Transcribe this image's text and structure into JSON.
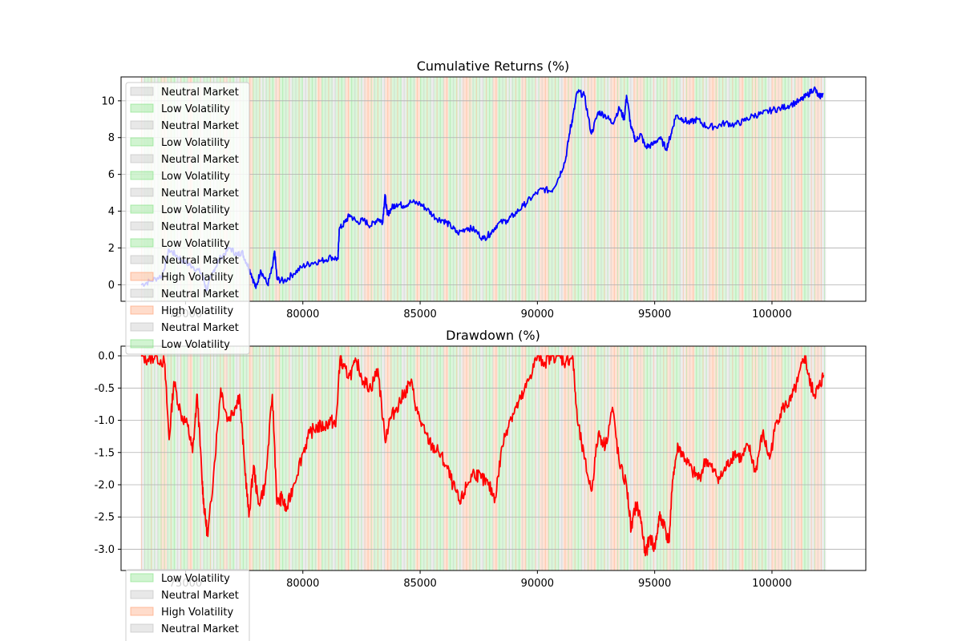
{
  "colors": {
    "neutral": "#bdbdbd",
    "low_vol": "#7be07b",
    "high_vol": "#ff9a6a",
    "returns_line": "#0000ff",
    "drawdown_line": "#ff0000",
    "grid": "#b0b0b0"
  },
  "regime_spans": [
    [
      73100,
      73300,
      "neutral"
    ],
    [
      73300,
      73600,
      "low"
    ],
    [
      73600,
      73800,
      "neutral"
    ],
    [
      73800,
      74000,
      "low"
    ],
    [
      74000,
      74200,
      "high"
    ],
    [
      74200,
      74600,
      "low"
    ],
    [
      74600,
      74800,
      "neutral"
    ],
    [
      74800,
      75100,
      "low"
    ],
    [
      75100,
      75300,
      "high"
    ],
    [
      75300,
      75600,
      "low"
    ],
    [
      75600,
      75800,
      "neutral"
    ],
    [
      75800,
      76100,
      "low"
    ],
    [
      76100,
      76300,
      "neutral"
    ],
    [
      76300,
      76600,
      "low"
    ],
    [
      76600,
      76800,
      "high"
    ],
    [
      76800,
      77100,
      "low"
    ],
    [
      77100,
      77300,
      "neutral"
    ],
    [
      77300,
      77700,
      "low"
    ],
    [
      77700,
      77900,
      "high"
    ],
    [
      77900,
      78200,
      "low"
    ],
    [
      78200,
      78400,
      "neutral"
    ],
    [
      78400,
      78800,
      "low"
    ],
    [
      78800,
      79000,
      "high"
    ],
    [
      79000,
      79400,
      "low"
    ],
    [
      79400,
      79600,
      "neutral"
    ],
    [
      79600,
      80000,
      "low"
    ],
    [
      80000,
      80200,
      "neutral"
    ],
    [
      80200,
      80600,
      "low"
    ],
    [
      80600,
      80800,
      "high"
    ],
    [
      80800,
      81200,
      "low"
    ],
    [
      81200,
      81400,
      "neutral"
    ],
    [
      81400,
      81800,
      "low"
    ],
    [
      81800,
      82000,
      "high"
    ],
    [
      82000,
      82400,
      "low"
    ],
    [
      82400,
      82600,
      "neutral"
    ],
    [
      82600,
      83000,
      "high"
    ],
    [
      83000,
      83300,
      "low"
    ],
    [
      83300,
      83500,
      "neutral"
    ],
    [
      83500,
      83800,
      "high"
    ],
    [
      83800,
      84200,
      "low"
    ],
    [
      84200,
      84400,
      "neutral"
    ],
    [
      84400,
      84800,
      "low"
    ],
    [
      84800,
      85000,
      "high"
    ],
    [
      85000,
      85400,
      "low"
    ],
    [
      85400,
      85600,
      "neutral"
    ],
    [
      85600,
      86000,
      "low"
    ],
    [
      86000,
      86200,
      "high"
    ],
    [
      86200,
      86600,
      "low"
    ],
    [
      86600,
      86800,
      "neutral"
    ],
    [
      86800,
      87200,
      "high"
    ],
    [
      87200,
      87500,
      "low"
    ],
    [
      87500,
      87700,
      "neutral"
    ],
    [
      87700,
      88100,
      "low"
    ],
    [
      88100,
      88300,
      "high"
    ],
    [
      88300,
      88700,
      "low"
    ],
    [
      88700,
      88900,
      "neutral"
    ],
    [
      88900,
      89300,
      "low"
    ],
    [
      89300,
      89500,
      "high"
    ],
    [
      89500,
      89900,
      "low"
    ],
    [
      89900,
      90100,
      "neutral"
    ],
    [
      90100,
      90500,
      "high"
    ],
    [
      90500,
      90900,
      "low"
    ],
    [
      90900,
      91100,
      "neutral"
    ],
    [
      91100,
      91500,
      "high"
    ],
    [
      91500,
      91900,
      "low"
    ],
    [
      91900,
      92100,
      "neutral"
    ],
    [
      92100,
      92500,
      "high"
    ],
    [
      92500,
      92900,
      "low"
    ],
    [
      92900,
      93100,
      "neutral"
    ],
    [
      93100,
      93500,
      "high"
    ],
    [
      93500,
      93900,
      "low"
    ],
    [
      93900,
      94100,
      "neutral"
    ],
    [
      94100,
      94500,
      "high"
    ],
    [
      94500,
      94900,
      "low"
    ],
    [
      94900,
      95100,
      "neutral"
    ],
    [
      95100,
      95500,
      "low"
    ],
    [
      95500,
      95700,
      "high"
    ],
    [
      95700,
      96100,
      "low"
    ],
    [
      96100,
      96300,
      "neutral"
    ],
    [
      96300,
      96700,
      "high"
    ],
    [
      96700,
      97100,
      "low"
    ],
    [
      97100,
      97300,
      "neutral"
    ],
    [
      97300,
      97700,
      "high"
    ],
    [
      97700,
      98000,
      "low"
    ],
    [
      98000,
      98200,
      "neutral"
    ],
    [
      98200,
      98600,
      "low"
    ],
    [
      98600,
      98800,
      "high"
    ],
    [
      98800,
      99200,
      "low"
    ],
    [
      99200,
      99400,
      "high"
    ],
    [
      99400,
      99800,
      "low"
    ],
    [
      99800,
      100000,
      "neutral"
    ],
    [
      100000,
      100400,
      "high"
    ],
    [
      100400,
      100800,
      "low"
    ],
    [
      100800,
      101000,
      "neutral"
    ],
    [
      101000,
      101300,
      "high"
    ],
    [
      101300,
      101600,
      "low"
    ],
    [
      101600,
      101800,
      "neutral"
    ],
    [
      101800,
      102050,
      "high"
    ],
    [
      102050,
      102300,
      "neutral"
    ]
  ],
  "chart_data": [
    {
      "type": "line",
      "title": "Cumulative Returns (%)",
      "xlabel": "",
      "ylabel": "",
      "xlim": [
        72250,
        104000
      ],
      "ylim": [
        -0.9,
        11.3
      ],
      "x_ticks": [
        75000,
        80000,
        85000,
        90000,
        95000,
        100000
      ],
      "y_ticks": [
        0,
        2,
        4,
        6,
        8,
        10
      ],
      "grid": "horizontal",
      "legend_position": "top-left",
      "legend": [
        "Neutral Market",
        "Low Volatility",
        "Neutral Market",
        "Low Volatility",
        "Neutral Market",
        "Low Volatility",
        "Neutral Market",
        "Low Volatility",
        "Neutral Market",
        "Low Volatility",
        "Neutral Market",
        "High Volatility",
        "Neutral Market",
        "High Volatility",
        "Neutral Market",
        "Low Volatility"
      ],
      "legend_swatches": [
        "neutral",
        "low",
        "neutral",
        "low",
        "neutral",
        "low",
        "neutral",
        "low",
        "neutral",
        "low",
        "neutral",
        "high",
        "neutral",
        "high",
        "neutral",
        "low"
      ],
      "series": [
        {
          "color": "#0000ff",
          "x": [
            73100,
            73500,
            74000,
            74300,
            74600,
            75000,
            75300,
            75700,
            75900,
            76200,
            76500,
            76900,
            77200,
            77400,
            77600,
            77800,
            78000,
            78200,
            78500,
            78700,
            78800,
            78900,
            79200,
            79600,
            80000,
            80400,
            80800,
            81200,
            81500,
            81550,
            81800,
            82000,
            82300,
            82600,
            82900,
            83200,
            83400,
            83500,
            83600,
            83800,
            84000,
            84300,
            84600,
            85000,
            85300,
            85700,
            86000,
            86300,
            86600,
            87000,
            87300,
            87700,
            88000,
            88300,
            88700,
            89000,
            89400,
            89800,
            90200,
            90600,
            90900,
            91200,
            91400,
            91500,
            91700,
            92000,
            92300,
            92600,
            92900,
            93200,
            93500,
            93700,
            93800,
            94000,
            94200,
            94400,
            94600,
            94900,
            95200,
            95500,
            95700,
            95900,
            96200,
            96500,
            96800,
            97200,
            97600,
            98000,
            98400,
            98800,
            99200,
            99600,
            100000,
            100400,
            100800,
            101200,
            101500,
            101800,
            102000,
            102200
          ],
          "y": [
            0.0,
            0.2,
            0.5,
            1.9,
            1.6,
            1.2,
            1.0,
            0.6,
            -0.3,
            0.8,
            1.5,
            2.0,
            1.6,
            1.8,
            1.2,
            0.6,
            -0.2,
            0.8,
            0.0,
            0.9,
            1.8,
            0.3,
            0.2,
            0.6,
            1.0,
            1.2,
            1.3,
            1.5,
            1.4,
            3.0,
            3.4,
            3.8,
            3.4,
            3.5,
            3.2,
            3.6,
            3.4,
            4.9,
            3.8,
            4.2,
            4.4,
            4.3,
            4.5,
            4.4,
            4.1,
            3.6,
            3.5,
            3.2,
            2.8,
            3.1,
            3.0,
            2.5,
            2.8,
            3.3,
            3.5,
            3.8,
            4.3,
            4.8,
            5.2,
            5.1,
            5.8,
            6.8,
            8.5,
            9.0,
            10.5,
            10.3,
            8.2,
            9.4,
            9.2,
            8.8,
            9.6,
            9.0,
            10.3,
            8.5,
            7.8,
            8.2,
            7.5,
            7.6,
            8.0,
            7.4,
            8.2,
            9.2,
            9.0,
            8.8,
            9.0,
            8.6,
            8.6,
            8.8,
            8.7,
            8.9,
            9.2,
            9.3,
            9.5,
            9.6,
            9.8,
            10.0,
            10.3,
            10.7,
            10.2,
            10.4
          ]
        }
      ]
    },
    {
      "type": "line",
      "title": "Drawdown (%)",
      "xlabel": "",
      "ylabel": "",
      "xlim": [
        72250,
        104000
      ],
      "ylim": [
        -3.33,
        0.15
      ],
      "x_ticks": [
        75000,
        80000,
        85000,
        90000,
        95000,
        100000
      ],
      "y_ticks": [
        0.0,
        -0.5,
        -1.0,
        -1.5,
        -2.0,
        -2.5,
        -3.0
      ],
      "grid": "horizontal",
      "legend_position": "bottom-left",
      "legend": [
        "Low Volatility",
        "Neutral Market",
        "High Volatility",
        "Neutral Market"
      ],
      "legend_swatches": [
        "low",
        "neutral",
        "high",
        "neutral"
      ],
      "series": [
        {
          "color": "#ff0000",
          "x": [
            73100,
            73400,
            73700,
            74100,
            74300,
            74500,
            74800,
            75100,
            75300,
            75500,
            75700,
            75800,
            75950,
            76200,
            76500,
            76800,
            77100,
            77300,
            77500,
            77700,
            77900,
            78100,
            78400,
            78700,
            78900,
            79100,
            79300,
            79600,
            80000,
            80300,
            80600,
            80900,
            81200,
            81400,
            81600,
            81700,
            82000,
            82300,
            82600,
            82900,
            83200,
            83500,
            83700,
            84000,
            84300,
            84600,
            84900,
            85200,
            85500,
            85800,
            86100,
            86400,
            86700,
            87000,
            87300,
            87600,
            87900,
            88200,
            88500,
            88800,
            89100,
            89400,
            89700,
            90000,
            90300,
            90600,
            90900,
            91200,
            91500,
            91700,
            92000,
            92300,
            92600,
            92900,
            93200,
            93500,
            93800,
            94000,
            94200,
            94400,
            94600,
            94800,
            95000,
            95200,
            95400,
            95600,
            95800,
            96000,
            96300,
            96600,
            96900,
            97200,
            97500,
            97800,
            98100,
            98400,
            98700,
            99000,
            99300,
            99600,
            99900,
            100200,
            100500,
            100800,
            101100,
            101400,
            101600,
            101800,
            102000,
            102200
          ],
          "y": [
            0.0,
            -0.05,
            0.0,
            -0.1,
            -1.3,
            -0.4,
            -0.9,
            -1.1,
            -1.5,
            -0.6,
            -1.9,
            -2.4,
            -2.8,
            -1.8,
            -0.5,
            -1.0,
            -0.8,
            -0.6,
            -1.6,
            -2.5,
            -1.7,
            -2.3,
            -2.0,
            -0.6,
            -2.3,
            -2.2,
            -2.4,
            -2.0,
            -1.5,
            -1.2,
            -1.1,
            -1.1,
            -1.0,
            -1.1,
            0.0,
            -0.2,
            -0.3,
            -0.1,
            -0.4,
            -0.5,
            -0.2,
            -1.3,
            -1.0,
            -0.8,
            -0.6,
            -0.4,
            -0.9,
            -1.2,
            -1.4,
            -1.5,
            -1.7,
            -2.0,
            -2.3,
            -2.0,
            -1.8,
            -1.9,
            -2.0,
            -2.2,
            -1.4,
            -1.0,
            -0.8,
            -0.6,
            -0.3,
            0.0,
            -0.1,
            0.0,
            0.0,
            -0.1,
            0.0,
            -1.0,
            -1.6,
            -2.1,
            -1.2,
            -1.4,
            -0.8,
            -1.7,
            -2.0,
            -2.7,
            -2.3,
            -2.5,
            -3.1,
            -2.8,
            -3.0,
            -2.5,
            -2.6,
            -2.9,
            -1.8,
            -1.4,
            -1.6,
            -1.8,
            -1.9,
            -1.6,
            -1.8,
            -1.9,
            -1.7,
            -1.5,
            -1.6,
            -1.4,
            -1.8,
            -1.2,
            -1.6,
            -1.0,
            -0.8,
            -0.7,
            -0.4,
            0.0,
            -0.4,
            -0.6,
            -0.5,
            -0.3
          ]
        }
      ]
    }
  ]
}
